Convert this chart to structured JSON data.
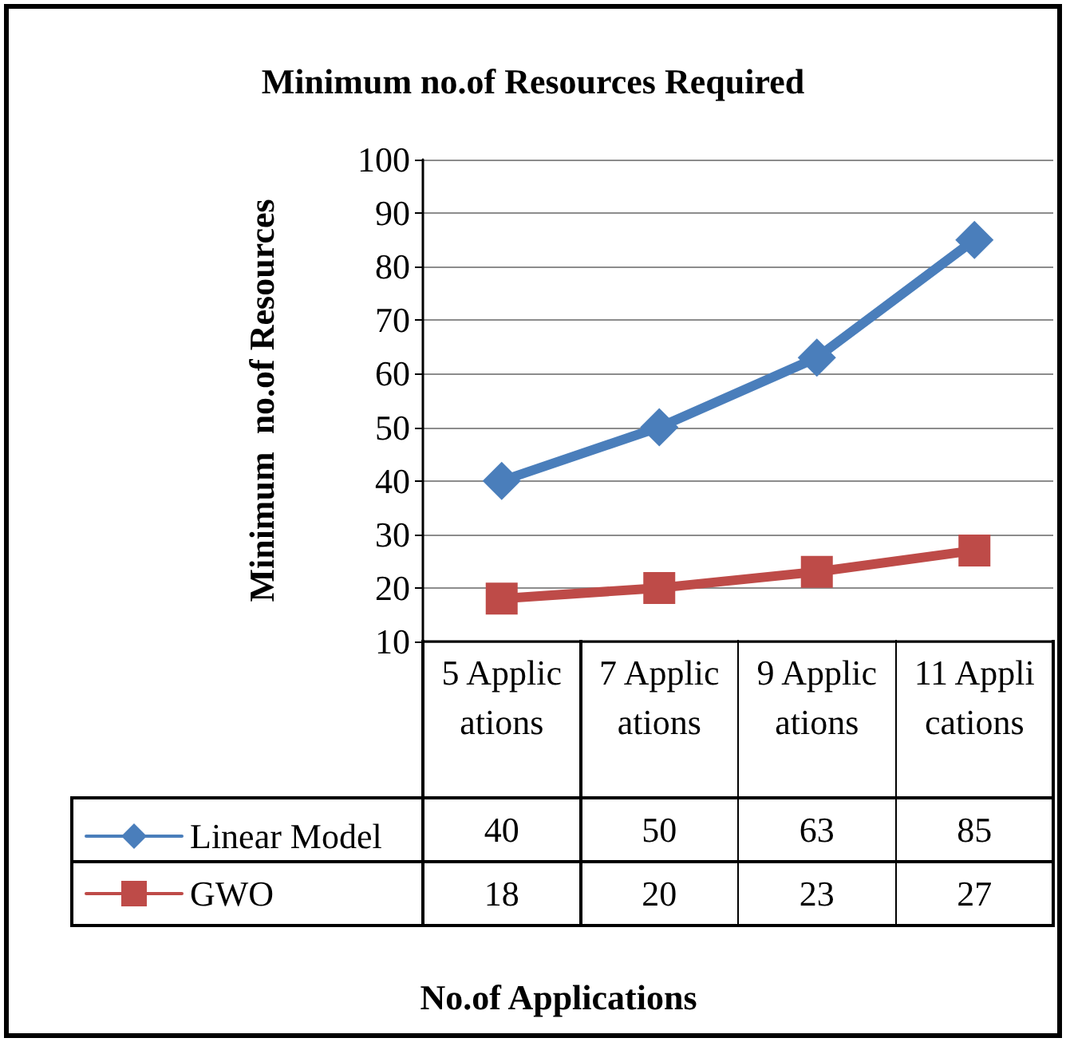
{
  "chart_data": {
    "type": "line",
    "title": "Minimum no.of Resources Required",
    "annotations": [
      "No.of Applications"
    ],
    "ylabel": "Minimum  no.of Resources",
    "categories": [
      "5 Applications",
      "7 Applications",
      "9 Applications",
      "11 Applications"
    ],
    "series": [
      {
        "name": "Linear Model",
        "color": "#4a7ebb",
        "marker": "diamond",
        "values": [
          40,
          50,
          63,
          85
        ]
      },
      {
        "name": "GWO",
        "color": "#be4b48",
        "marker": "square",
        "values": [
          18,
          20,
          23,
          27
        ]
      }
    ],
    "ylim": [
      10,
      100
    ],
    "yticks": [
      10,
      20,
      30,
      40,
      50,
      60,
      70,
      80,
      90,
      100
    ],
    "grid": "y",
    "legend": "bottom",
    "data_labels": true,
    "line_style": "solid"
  }
}
